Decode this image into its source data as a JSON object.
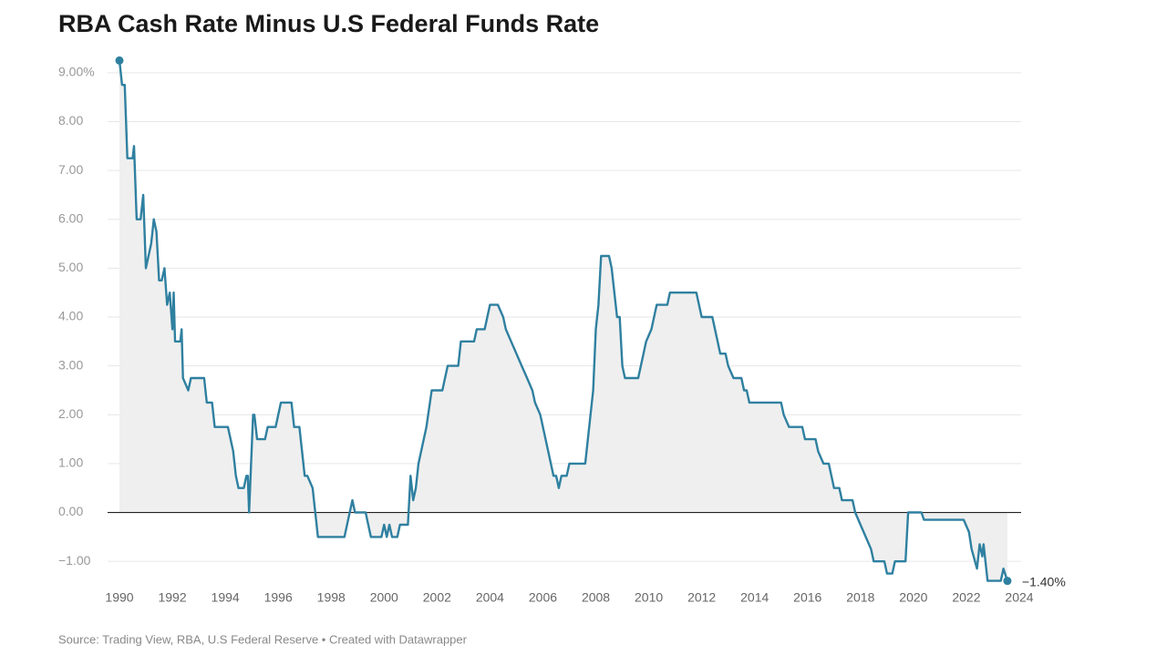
{
  "chart_data": {
    "type": "area-line",
    "title": "RBA Cash Rate Minus U.S Federal Funds Rate",
    "source": "Source: Trading View, RBA, U.S Federal Reserve • Created with Datawrapper",
    "color": "#2f80a0",
    "area_color": "#efefef",
    "grid": true,
    "xlim": [
      1990,
      2024
    ],
    "xticks": [
      1990,
      1992,
      1994,
      1996,
      1998,
      2000,
      2002,
      2004,
      2006,
      2008,
      2010,
      2012,
      2014,
      2016,
      2018,
      2020,
      2022,
      2024
    ],
    "ylim": [
      -1.5,
      9.5
    ],
    "yticks": [
      {
        "value": -1,
        "label": "−1.00"
      },
      {
        "value": 0,
        "label": "0.00"
      },
      {
        "value": 1,
        "label": "1.00"
      },
      {
        "value": 2,
        "label": "2.00"
      },
      {
        "value": 3,
        "label": "3.00"
      },
      {
        "value": 4,
        "label": "4.00"
      },
      {
        "value": 5,
        "label": "5.00"
      },
      {
        "value": 6,
        "label": "6.00"
      },
      {
        "value": 7,
        "label": "7.00"
      },
      {
        "value": 8,
        "label": "8.00"
      },
      {
        "value": 9,
        "label": "9.00%"
      }
    ],
    "end_label": "−1.40%",
    "x": [
      1990.0,
      1990.1,
      1990.2,
      1990.3,
      1990.5,
      1990.55,
      1990.65,
      1990.8,
      1990.9,
      1991.0,
      1991.2,
      1991.3,
      1991.4,
      1991.5,
      1991.6,
      1991.7,
      1991.8,
      1991.9,
      1992.0,
      1992.05,
      1992.1,
      1992.3,
      1992.35,
      1992.4,
      1992.6,
      1992.7,
      1993.2,
      1993.3,
      1993.5,
      1993.6,
      1994.1,
      1994.3,
      1994.4,
      1994.5,
      1994.7,
      1994.8,
      1994.85,
      1994.9,
      1995.05,
      1995.1,
      1995.2,
      1995.5,
      1995.6,
      1995.9,
      1996.1,
      1996.5,
      1996.6,
      1996.8,
      1997.0,
      1997.1,
      1997.3,
      1997.4,
      1997.5,
      1998.5,
      1998.7,
      1998.8,
      1998.9,
      1999.3,
      1999.5,
      1999.9,
      2000.0,
      2000.1,
      2000.2,
      2000.3,
      2000.5,
      2000.6,
      2000.9,
      2001.0,
      2001.1,
      2001.2,
      2001.3,
      2001.4,
      2001.6,
      2001.8,
      2002.2,
      2002.4,
      2002.8,
      2002.9,
      2003.4,
      2003.5,
      2003.8,
      2003.9,
      2004.0,
      2004.3,
      2004.5,
      2004.6,
      2004.8,
      2005.0,
      2005.2,
      2005.4,
      2005.6,
      2005.7,
      2005.9,
      2006.0,
      2006.1,
      2006.2,
      2006.3,
      2006.4,
      2006.5,
      2006.6,
      2006.7,
      2006.9,
      2007.0,
      2007.6,
      2007.7,
      2007.8,
      2007.9,
      2008.0,
      2008.1,
      2008.2,
      2008.5,
      2008.6,
      2008.8,
      2008.9,
      2009.0,
      2009.1,
      2009.6,
      2009.8,
      2009.9,
      2010.1,
      2010.2,
      2010.3,
      2010.7,
      2010.8,
      2011.8,
      2011.9,
      2012.0,
      2012.4,
      2012.6,
      2012.7,
      2012.9,
      2013.0,
      2013.2,
      2013.5,
      2013.6,
      2013.7,
      2013.8,
      2015.0,
      2015.1,
      2015.3,
      2015.8,
      2015.9,
      2016.3,
      2016.4,
      2016.6,
      2016.8,
      2016.9,
      2017.0,
      2017.2,
      2017.3,
      2017.7,
      2017.8,
      2018.0,
      2018.2,
      2018.4,
      2018.5,
      2018.9,
      2019.0,
      2019.2,
      2019.3,
      2019.7,
      2019.8,
      2020.3,
      2020.4,
      2021.9,
      2022.1,
      2022.2,
      2022.4,
      2022.5,
      2022.6,
      2022.65,
      2022.8,
      2023.3,
      2023.4,
      2023.55
    ],
    "values": [
      9.25,
      8.75,
      8.75,
      7.25,
      7.25,
      7.5,
      6.0,
      6.0,
      6.5,
      5.0,
      5.5,
      6.0,
      5.75,
      4.75,
      4.75,
      5.0,
      4.25,
      4.5,
      3.75,
      4.5,
      3.5,
      3.5,
      3.75,
      2.75,
      2.5,
      2.75,
      2.75,
      2.25,
      2.25,
      1.75,
      1.75,
      1.25,
      0.75,
      0.5,
      0.5,
      0.75,
      0.75,
      0.0,
      2.0,
      2.0,
      1.5,
      1.5,
      1.75,
      1.75,
      2.25,
      2.25,
      1.75,
      1.75,
      0.75,
      0.75,
      0.5,
      0.0,
      -0.5,
      -0.5,
      0.0,
      0.25,
      0.0,
      0.0,
      -0.5,
      -0.5,
      -0.25,
      -0.5,
      -0.25,
      -0.5,
      -0.5,
      -0.25,
      -0.25,
      0.75,
      0.25,
      0.5,
      1.0,
      1.25,
      1.75,
      2.5,
      2.5,
      3.0,
      3.0,
      3.5,
      3.5,
      3.75,
      3.75,
      4.0,
      4.25,
      4.25,
      4.0,
      3.75,
      3.5,
      3.25,
      3.0,
      2.75,
      2.5,
      2.25,
      2.0,
      1.75,
      1.5,
      1.25,
      1.0,
      0.75,
      0.75,
      0.5,
      0.75,
      0.75,
      1.0,
      1.0,
      1.5,
      2.0,
      2.5,
      3.75,
      4.25,
      5.25,
      5.25,
      5.0,
      4.0,
      4.0,
      3.0,
      2.75,
      2.75,
      3.25,
      3.5,
      3.75,
      4.0,
      4.25,
      4.25,
      4.5,
      4.5,
      4.25,
      4.0,
      4.0,
      3.5,
      3.25,
      3.25,
      3.0,
      2.75,
      2.75,
      2.5,
      2.5,
      2.25,
      2.25,
      2.0,
      1.75,
      1.75,
      1.5,
      1.5,
      1.25,
      1.0,
      1.0,
      0.75,
      0.5,
      0.5,
      0.25,
      0.25,
      0.0,
      -0.25,
      -0.5,
      -0.75,
      -1.0,
      -1.0,
      -1.25,
      -1.25,
      -1.0,
      -1.0,
      0.0,
      0.0,
      -0.15,
      -0.15,
      -0.4,
      -0.75,
      -1.15,
      -0.65,
      -0.9,
      -0.65,
      -1.4,
      -1.4,
      -1.15,
      -1.4
    ]
  }
}
